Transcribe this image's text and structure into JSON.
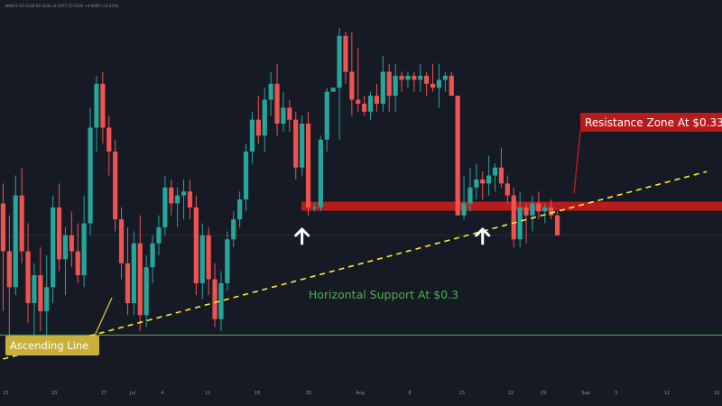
{
  "header": {
    "ohlc_text": "...NANCE O0.3118 H0.3246 L0.3075 C0.3236 +0.0065 (+2.03%)"
  },
  "colors": {
    "background": "#161a25",
    "up_candle": "#26a69a",
    "down_candle": "#ef5350",
    "resistance_zone": "#b71c1c",
    "support_line": "#4caf50",
    "ascending_line": "#ffeb3b",
    "arrow": "#ffffff"
  },
  "annotations": {
    "resistance_label": "Resistance Zone At $0.33",
    "support_label": "Horizontal Support At $0.3",
    "ascending_label": "Ascending Line"
  },
  "chart_data": {
    "type": "candlestick",
    "title": "",
    "xlabel": "",
    "ylabel": "",
    "x_ticks": [
      "13",
      "20",
      "27",
      "Jul",
      "4",
      "11",
      "18",
      "25",
      "Aug",
      "8",
      "15",
      "22",
      "29",
      "Sep",
      "5",
      "12",
      "19"
    ],
    "ohlc": [
      [
        0.333,
        0.338,
        0.306,
        0.321
      ],
      [
        0.321,
        0.33,
        0.299,
        0.312
      ],
      [
        0.312,
        0.34,
        0.31,
        0.335
      ],
      [
        0.335,
        0.342,
        0.318,
        0.321
      ],
      [
        0.321,
        0.328,
        0.303,
        0.308
      ],
      [
        0.308,
        0.318,
        0.297,
        0.315
      ],
      [
        0.315,
        0.322,
        0.301,
        0.306
      ],
      [
        0.306,
        0.32,
        0.296,
        0.312
      ],
      [
        0.312,
        0.335,
        0.308,
        0.332
      ],
      [
        0.332,
        0.338,
        0.316,
        0.319
      ],
      [
        0.319,
        0.327,
        0.31,
        0.325
      ],
      [
        0.325,
        0.331,
        0.317,
        0.321
      ],
      [
        0.321,
        0.328,
        0.313,
        0.315
      ],
      [
        0.315,
        0.335,
        0.312,
        0.328
      ],
      [
        0.328,
        0.357,
        0.325,
        0.352
      ],
      [
        0.352,
        0.365,
        0.346,
        0.363
      ],
      [
        0.363,
        0.366,
        0.348,
        0.352
      ],
      [
        0.352,
        0.355,
        0.34,
        0.346
      ],
      [
        0.346,
        0.349,
        0.326,
        0.329
      ],
      [
        0.329,
        0.332,
        0.314,
        0.318
      ],
      [
        0.318,
        0.327,
        0.305,
        0.308
      ],
      [
        0.308,
        0.326,
        0.305,
        0.323
      ],
      [
        0.323,
        0.33,
        0.301,
        0.305
      ],
      [
        0.305,
        0.32,
        0.302,
        0.317
      ],
      [
        0.317,
        0.325,
        0.313,
        0.323
      ],
      [
        0.323,
        0.33,
        0.32,
        0.327
      ],
      [
        0.327,
        0.34,
        0.325,
        0.337
      ],
      [
        0.337,
        0.339,
        0.33,
        0.333
      ],
      [
        0.333,
        0.337,
        0.327,
        0.335
      ],
      [
        0.335,
        0.339,
        0.329,
        0.336
      ],
      [
        0.336,
        0.339,
        0.329,
        0.332
      ],
      [
        0.332,
        0.335,
        0.31,
        0.313
      ],
      [
        0.313,
        0.328,
        0.309,
        0.325
      ],
      [
        0.325,
        0.327,
        0.31,
        0.314
      ],
      [
        0.314,
        0.318,
        0.302,
        0.304
      ],
      [
        0.304,
        0.316,
        0.301,
        0.313
      ],
      [
        0.313,
        0.326,
        0.311,
        0.324
      ],
      [
        0.324,
        0.331,
        0.322,
        0.329
      ],
      [
        0.329,
        0.336,
        0.327,
        0.334
      ],
      [
        0.334,
        0.348,
        0.331,
        0.346
      ],
      [
        0.346,
        0.356,
        0.343,
        0.354
      ],
      [
        0.354,
        0.36,
        0.348,
        0.35
      ],
      [
        0.35,
        0.362,
        0.346,
        0.359
      ],
      [
        0.359,
        0.366,
        0.355,
        0.363
      ],
      [
        0.363,
        0.368,
        0.35,
        0.353
      ],
      [
        0.353,
        0.361,
        0.351,
        0.357
      ],
      [
        0.357,
        0.359,
        0.351,
        0.354
      ],
      [
        0.354,
        0.356,
        0.339,
        0.342
      ],
      [
        0.342,
        0.355,
        0.34,
        0.353
      ],
      [
        0.353,
        0.356,
        0.33,
        0.332
      ],
      [
        0.332,
        0.333,
        0.331,
        0.332
      ],
      [
        0.332,
        0.35,
        0.331,
        0.349
      ],
      [
        0.349,
        0.362,
        0.346,
        0.361
      ],
      [
        0.361,
        0.362,
        0.361,
        0.362
      ],
      [
        0.362,
        0.377,
        0.349,
        0.375
      ],
      [
        0.375,
        0.376,
        0.363,
        0.366
      ],
      [
        0.366,
        0.376,
        0.355,
        0.359
      ],
      [
        0.359,
        0.372,
        0.356,
        0.358
      ],
      [
        0.358,
        0.36,
        0.355,
        0.356
      ],
      [
        0.356,
        0.361,
        0.354,
        0.36
      ],
      [
        0.36,
        0.363,
        0.356,
        0.358
      ],
      [
        0.358,
        0.37,
        0.356,
        0.366
      ],
      [
        0.366,
        0.368,
        0.356,
        0.36
      ],
      [
        0.36,
        0.368,
        0.356,
        0.365
      ],
      [
        0.365,
        0.366,
        0.361,
        0.364
      ],
      [
        0.364,
        0.366,
        0.362,
        0.365
      ],
      [
        0.365,
        0.366,
        0.361,
        0.364
      ],
      [
        0.364,
        0.368,
        0.361,
        0.365
      ],
      [
        0.365,
        0.366,
        0.36,
        0.363
      ],
      [
        0.363,
        0.368,
        0.361,
        0.362
      ],
      [
        0.362,
        0.368,
        0.357,
        0.364
      ],
      [
        0.364,
        0.366,
        0.361,
        0.365
      ],
      [
        0.365,
        0.366,
        0.36,
        0.36
      ],
      [
        0.36,
        0.36,
        0.33,
        0.33
      ],
      [
        0.33,
        0.34,
        0.329,
        0.333
      ],
      [
        0.333,
        0.342,
        0.331,
        0.337
      ],
      [
        0.337,
        0.343,
        0.334,
        0.339
      ],
      [
        0.339,
        0.341,
        0.334,
        0.338
      ],
      [
        0.338,
        0.345,
        0.335,
        0.34
      ],
      [
        0.34,
        0.343,
        0.336,
        0.342
      ],
      [
        0.342,
        0.347,
        0.337,
        0.338
      ],
      [
        0.338,
        0.34,
        0.333,
        0.335
      ],
      [
        0.335,
        0.337,
        0.322,
        0.324
      ],
      [
        0.324,
        0.336,
        0.322,
        0.332
      ],
      [
        0.332,
        0.333,
        0.323,
        0.33
      ],
      [
        0.33,
        0.335,
        0.326,
        0.333
      ],
      [
        0.333,
        0.336,
        0.329,
        0.331
      ],
      [
        0.331,
        0.333,
        0.328,
        0.332
      ],
      [
        0.332,
        0.334,
        0.329,
        0.33
      ],
      [
        0.33,
        0.331,
        0.325,
        0.325
      ]
    ],
    "levels": [
      {
        "label": "Resistance Zone At $0.33",
        "type": "zone",
        "value": 0.3323
      },
      {
        "label": "Horizontal Support At $0.3",
        "type": "horizontal",
        "value": 0.3
      },
      {
        "label": "Ascending Line",
        "type": "trendline",
        "from": {
          "bar": 0,
          "value": 0.294
        },
        "to": {
          "bar": 113,
          "value": 0.341
        }
      }
    ],
    "markers": [
      {
        "type": "up-arrow",
        "bar": 48
      },
      {
        "type": "up-arrow",
        "bar": 77
      }
    ],
    "ylim": [
      0.289,
      0.384
    ],
    "grid": false,
    "legend": "none"
  }
}
